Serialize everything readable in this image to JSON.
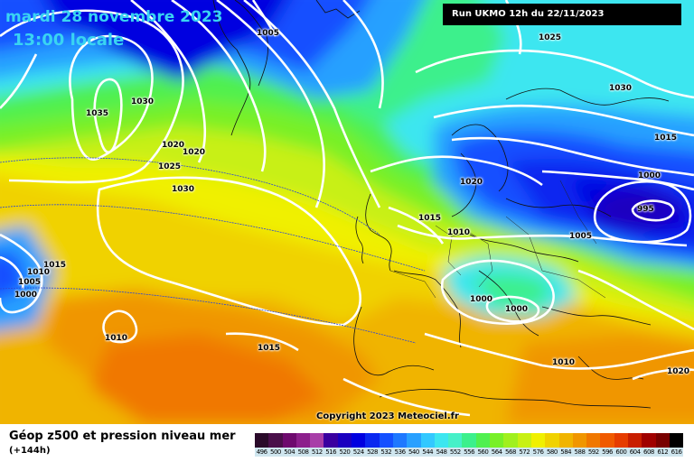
{
  "title": {
    "date_line": "mardi 28 novembre 2023",
    "time_line": "13:00 locale"
  },
  "run_info": "Run UKMO 12h du 22/11/2023",
  "copyright": "Copyright 2023 Meteociel.fr",
  "footer": {
    "title": "Géop z500 et pression niveau mer",
    "subtitle": "(+144h)"
  },
  "legend": {
    "labels": [
      "496",
      "500",
      "504",
      "508",
      "512",
      "516",
      "520",
      "524",
      "528",
      "532",
      "536",
      "540",
      "544",
      "548",
      "552",
      "556",
      "560",
      "564",
      "568",
      "572",
      "576",
      "580",
      "584",
      "588",
      "592",
      "596",
      "600",
      "604",
      "608",
      "612",
      "616"
    ],
    "colors": [
      "#2a0a2a",
      "#4a0f4a",
      "#6e0a6e",
      "#8c1f8c",
      "#a83ea8",
      "#3a00a0",
      "#1a00c0",
      "#0000e0",
      "#0a28f0",
      "#1450ff",
      "#1e78ff",
      "#28a0ff",
      "#32c8ff",
      "#3ce6f0",
      "#46f0c8",
      "#3cf08c",
      "#50f050",
      "#78f028",
      "#a0f01e",
      "#c8f014",
      "#f0f000",
      "#f0d200",
      "#f0b400",
      "#f09600",
      "#f07800",
      "#f05a00",
      "#e63c00",
      "#c81e00",
      "#a00000",
      "#780000",
      "#000000"
    ]
  },
  "isobar_labels": [
    {
      "id": "p1005-top",
      "text": "1005"
    },
    {
      "id": "p1025-top",
      "text": "1025"
    },
    {
      "id": "p1030-ne",
      "text": "1030"
    },
    {
      "id": "p1035",
      "text": "1035"
    },
    {
      "id": "p1030-gr",
      "text": "1030"
    },
    {
      "id": "p1015-east",
      "text": "1015"
    },
    {
      "id": "p1020-a",
      "text": "1020"
    },
    {
      "id": "p1020-b",
      "text": "1020"
    },
    {
      "id": "p1025-w",
      "text": "1025"
    },
    {
      "id": "p1000-east",
      "text": "1000"
    },
    {
      "id": "p1030-atl",
      "text": "1030"
    },
    {
      "id": "p1020-nsea",
      "text": "1020"
    },
    {
      "id": "p995",
      "text": "995"
    },
    {
      "id": "p1015-fr",
      "text": "1015"
    },
    {
      "id": "p1010-bx",
      "text": "1010"
    },
    {
      "id": "p1005-east",
      "text": "1005"
    },
    {
      "id": "p1015-w",
      "text": "1015"
    },
    {
      "id": "p1010-w",
      "text": "1010"
    },
    {
      "id": "p1005-w",
      "text": "1005"
    },
    {
      "id": "p1000-w",
      "text": "1000"
    },
    {
      "id": "p1000-it",
      "text": "1000"
    },
    {
      "id": "p1000-bk",
      "text": "1000"
    },
    {
      "id": "p1010-atl",
      "text": "1010"
    },
    {
      "id": "p1015-atl",
      "text": "1015"
    },
    {
      "id": "p1010-se",
      "text": "1010"
    },
    {
      "id": "p1020-se",
      "text": "1020"
    }
  ]
}
